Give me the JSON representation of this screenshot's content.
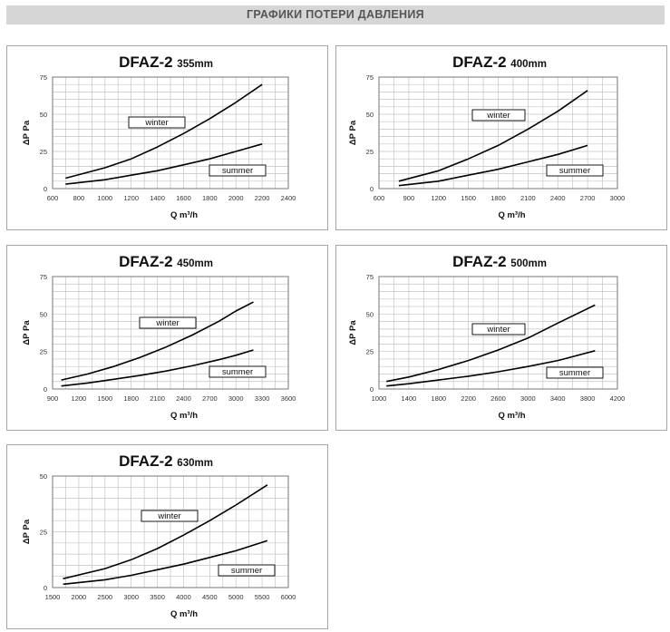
{
  "header": {
    "title": "ГРАФИКИ ПОТЕРИ ДАВЛЕНИЯ"
  },
  "chart_data": [
    {
      "type": "line",
      "title": "DFAZ-2",
      "subtitle": "355mm",
      "xlabel": "Q m³/h",
      "ylabel": "ΔP Pa",
      "xlim": [
        600,
        2400
      ],
      "ylim": [
        0,
        75
      ],
      "xticks": [
        600,
        800,
        1000,
        1200,
        1400,
        1600,
        1800,
        2000,
        2200,
        2400
      ],
      "yticks": [
        0,
        25,
        50,
        75
      ],
      "series": [
        {
          "name": "winter",
          "x": [
            700,
            1000,
            1200,
            1400,
            1600,
            1800,
            2000,
            2200
          ],
          "y": [
            7,
            14,
            20,
            28,
            37,
            47,
            58,
            70
          ]
        },
        {
          "name": "summer",
          "x": [
            700,
            1000,
            1200,
            1400,
            1600,
            1800,
            2000,
            2200
          ],
          "y": [
            3,
            6,
            9,
            12,
            16,
            20,
            25,
            30
          ]
        }
      ]
    },
    {
      "type": "line",
      "title": "DFAZ-2",
      "subtitle": "400mm",
      "xlabel": "Q m³/h",
      "ylabel": "ΔP Pa",
      "xlim": [
        600,
        3000
      ],
      "ylim": [
        0,
        75
      ],
      "xticks": [
        600,
        900,
        1200,
        1500,
        1800,
        2100,
        2400,
        2700,
        3000
      ],
      "yticks": [
        0,
        25,
        50,
        75
      ],
      "series": [
        {
          "name": "winter",
          "x": [
            800,
            1200,
            1500,
            1800,
            2100,
            2400,
            2700
          ],
          "y": [
            5,
            12,
            20,
            29,
            40,
            52,
            66
          ]
        },
        {
          "name": "summer",
          "x": [
            800,
            1200,
            1500,
            1800,
            2100,
            2400,
            2700
          ],
          "y": [
            2,
            5,
            9,
            13,
            18,
            23,
            29
          ]
        }
      ]
    },
    {
      "type": "line",
      "title": "DFAZ-2",
      "subtitle": "450mm",
      "xlabel": "Q m³/h",
      "ylabel": "ΔP Pa",
      "xlim": [
        900,
        3600
      ],
      "ylim": [
        0,
        75
      ],
      "xticks": [
        900,
        1200,
        1500,
        1800,
        2100,
        2400,
        2700,
        3000,
        3300,
        3600
      ],
      "yticks": [
        0,
        25,
        50,
        75
      ],
      "series": [
        {
          "name": "winter",
          "x": [
            1000,
            1300,
            1600,
            1900,
            2200,
            2500,
            2800,
            3000,
            3200
          ],
          "y": [
            6,
            10,
            15,
            21,
            28,
            36,
            45,
            52,
            58
          ]
        },
        {
          "name": "summer",
          "x": [
            1000,
            1300,
            1600,
            1900,
            2200,
            2500,
            2800,
            3000,
            3200
          ],
          "y": [
            2,
            4,
            6.5,
            9,
            12,
            15.5,
            19.5,
            22.5,
            26
          ]
        }
      ]
    },
    {
      "type": "line",
      "title": "DFAZ-2",
      "subtitle": "500mm",
      "xlabel": "Q m³/h",
      "ylabel": "ΔP Pa",
      "xlim": [
        1000,
        4200
      ],
      "ylim": [
        0,
        75
      ],
      "xticks": [
        1000,
        1400,
        1800,
        2200,
        2600,
        3000,
        3400,
        3800,
        4200
      ],
      "yticks": [
        0,
        25,
        50,
        75
      ],
      "series": [
        {
          "name": "winter",
          "x": [
            1100,
            1400,
            1800,
            2200,
            2600,
            3000,
            3400,
            3900
          ],
          "y": [
            5,
            8,
            13,
            19,
            26,
            34,
            44,
            56
          ]
        },
        {
          "name": "summer",
          "x": [
            1100,
            1400,
            1800,
            2200,
            2600,
            3000,
            3400,
            3900
          ],
          "y": [
            2,
            3.5,
            6,
            8.5,
            11.5,
            15,
            19,
            25.5
          ]
        }
      ]
    },
    {
      "type": "line",
      "title": "DFAZ-2",
      "subtitle": "630mm",
      "xlabel": "Q m³/h",
      "ylabel": "ΔP Pa",
      "xlim": [
        1500,
        6000
      ],
      "ylim": [
        0,
        50
      ],
      "xticks": [
        1500,
        2000,
        2500,
        3000,
        3500,
        4000,
        4500,
        5000,
        5500,
        6000
      ],
      "yticks": [
        0,
        25,
        50
      ],
      "series": [
        {
          "name": "winter",
          "x": [
            1700,
            2500,
            3000,
            3500,
            4000,
            4500,
            5000,
            5600
          ],
          "y": [
            4,
            8.5,
            12.5,
            17.5,
            23.5,
            30,
            37,
            46
          ]
        },
        {
          "name": "summer",
          "x": [
            1700,
            2500,
            3000,
            3500,
            4000,
            4500,
            5000,
            5600
          ],
          "y": [
            1.5,
            3.5,
            5.5,
            8,
            10.5,
            13.5,
            16.5,
            21
          ]
        }
      ]
    }
  ]
}
